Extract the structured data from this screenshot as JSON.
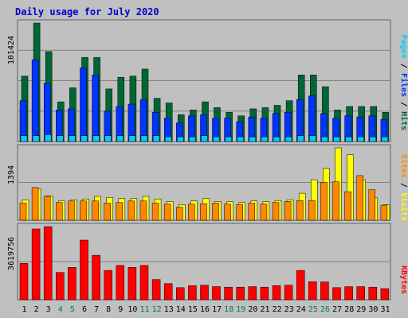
{
  "title": "Daily usage for July 2020",
  "colors": {
    "background": "#c0c0c0",
    "title": "#0000cc",
    "grid": "#808080",
    "hits": "#006633",
    "files": "#0033ff",
    "pages": "#00ccff",
    "visits": "#ffff00",
    "sites": "#ff8800",
    "kbytes": "#ff0000",
    "weekend_day": "#008040",
    "weekday": "#000000"
  },
  "chart_data": [
    {
      "type": "bar",
      "name": "hits-files-pages",
      "ymax_label": "101424",
      "ymax": 101424,
      "legend": [
        {
          "key": "pages",
          "label": "Pages"
        },
        {
          "key": "files",
          "label": "Files"
        },
        {
          "key": "hits",
          "label": "Hits"
        }
      ],
      "series": [
        {
          "key": "hits",
          "values": [
            56000,
            101424,
            77000,
            34000,
            46000,
            72000,
            72000,
            45000,
            55000,
            56000,
            62000,
            37000,
            33000,
            23000,
            27000,
            34000,
            29000,
            25000,
            22000,
            28000,
            29000,
            31000,
            35000,
            57000,
            57000,
            47000,
            27000,
            30000,
            30000,
            30000,
            25000
          ]
        },
        {
          "key": "files",
          "values": [
            35000,
            70000,
            50000,
            27000,
            28000,
            63000,
            57000,
            26000,
            30000,
            32000,
            36000,
            25000,
            20000,
            16000,
            22000,
            23000,
            20000,
            20000,
            17000,
            21000,
            20000,
            24000,
            25000,
            36000,
            39000,
            24000,
            20000,
            22000,
            21000,
            22000,
            19000
          ]
        },
        {
          "key": "pages",
          "values": [
            5000,
            5000,
            6000,
            5000,
            5000,
            5000,
            5000,
            5000,
            5000,
            5000,
            5000,
            5000,
            4000,
            4000,
            4000,
            5000,
            4000,
            4000,
            4000,
            4000,
            4000,
            4000,
            4000,
            5000,
            5000,
            4000,
            4000,
            4000,
            4000,
            4000,
            4000
          ]
        }
      ]
    },
    {
      "type": "bar",
      "name": "sites-visits",
      "ymax_label": "1394",
      "ymax": 1394,
      "legend": [
        {
          "key": "sites",
          "label": "Sites"
        },
        {
          "key": "visits",
          "label": "Visits"
        }
      ],
      "series": [
        {
          "key": "visits",
          "values": [
            390,
            610,
            470,
            370,
            390,
            410,
            460,
            440,
            420,
            420,
            460,
            410,
            360,
            300,
            370,
            420,
            360,
            360,
            340,
            370,
            360,
            380,
            390,
            520,
            780,
            1000,
            1394,
            1260,
            780,
            430,
            300
          ]
        },
        {
          "key": "sites",
          "values": [
            330,
            630,
            460,
            340,
            370,
            370,
            370,
            330,
            340,
            370,
            370,
            330,
            310,
            250,
            310,
            320,
            330,
            310,
            300,
            330,
            310,
            340,
            360,
            380,
            380,
            730,
            740,
            550,
            860,
            590,
            290
          ]
        }
      ]
    },
    {
      "type": "bar",
      "name": "kbytes",
      "ymax_label": "3619756",
      "ymax": 3619756,
      "legend": [
        {
          "key": "kbytes",
          "label": "KBytes"
        }
      ],
      "series": [
        {
          "key": "kbytes",
          "values": [
            1800000,
            3500000,
            3619756,
            1350000,
            1600000,
            2950000,
            2200000,
            1450000,
            1700000,
            1600000,
            1700000,
            1000000,
            800000,
            600000,
            700000,
            720000,
            650000,
            620000,
            620000,
            650000,
            620000,
            700000,
            720000,
            1450000,
            890000,
            880000,
            600000,
            650000,
            650000,
            620000,
            550000
          ]
        }
      ]
    }
  ],
  "x_labels": [
    "1",
    "2",
    "3",
    "4",
    "5",
    "6",
    "7",
    "8",
    "9",
    "10",
    "11",
    "12",
    "13",
    "14",
    "15",
    "16",
    "17",
    "18",
    "19",
    "20",
    "21",
    "22",
    "23",
    "24",
    "25",
    "26",
    "27",
    "28",
    "29",
    "30",
    "31"
  ],
  "weekend_days": [
    4,
    5,
    11,
    12,
    18,
    19,
    25,
    26
  ]
}
